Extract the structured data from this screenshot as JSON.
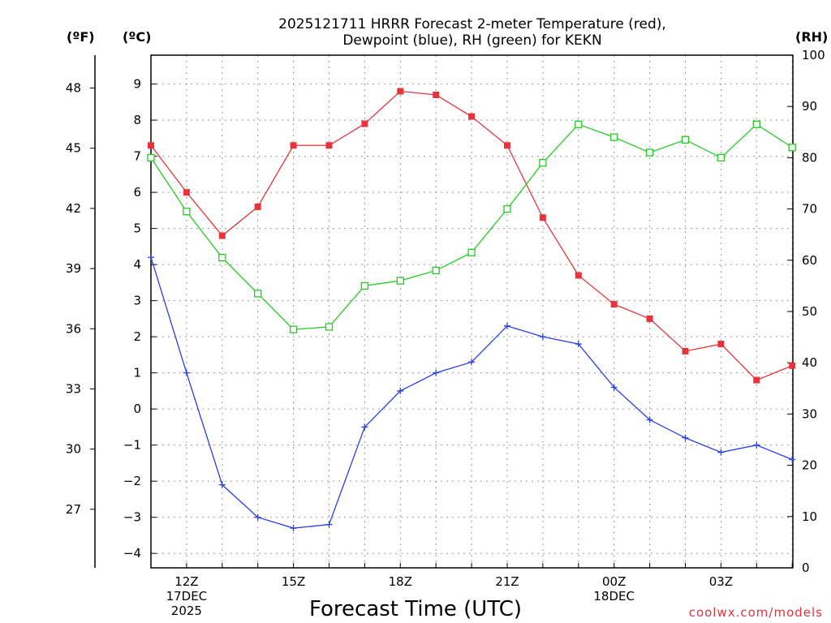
{
  "chart_data": {
    "type": "line",
    "title_line1": "2025121711 HRRR Forecast 2-meter Temperature (red),",
    "title_line2": "Dewpoint (blue), RH (green) for KEKN",
    "xlabel": "Forecast Time (UTC)",
    "credit": "coolwx.com/models",
    "unit_f": "(ºF)",
    "unit_c": "(ºC)",
    "unit_rh": "(RH)",
    "x_hours": [
      "11Z",
      "12Z",
      "13Z",
      "14Z",
      "15Z",
      "16Z",
      "17Z",
      "18Z",
      "19Z",
      "20Z",
      "21Z",
      "22Z",
      "23Z",
      "00Z",
      "01Z",
      "02Z",
      "03Z",
      "04Z",
      "05Z"
    ],
    "x_ticks": [
      {
        "index": 1,
        "lines": [
          "12Z",
          "17DEC",
          "2025"
        ]
      },
      {
        "index": 4,
        "lines": [
          "15Z"
        ]
      },
      {
        "index": 7,
        "lines": [
          "18Z"
        ]
      },
      {
        "index": 10,
        "lines": [
          "21Z"
        ]
      },
      {
        "index": 13,
        "lines": [
          "00Z",
          "18DEC"
        ]
      },
      {
        "index": 16,
        "lines": [
          "03Z"
        ]
      }
    ],
    "ylim_c": [
      -4.4,
      9.8
    ],
    "yticks_c": [
      -4,
      -3,
      -2,
      -1,
      0,
      1,
      2,
      3,
      4,
      5,
      6,
      7,
      8,
      9
    ],
    "ytick_labels_c": [
      "−4",
      "−3",
      "−2",
      "−1",
      "0",
      "1",
      "2",
      "3",
      "4",
      "5",
      "6",
      "7",
      "8",
      "9"
    ],
    "yticks_f": [
      27,
      30,
      33,
      36,
      39,
      42,
      45,
      48
    ],
    "ylim_rh": [
      0,
      100
    ],
    "yticks_rh": [
      0,
      10,
      20,
      30,
      40,
      50,
      60,
      70,
      80,
      90,
      100
    ],
    "series": [
      {
        "name": "Temperature",
        "unit": "C",
        "axis": "left",
        "color": "#e8333a",
        "marker": "filled-square",
        "values": [
          7.3,
          6.0,
          4.8,
          5.6,
          7.3,
          7.3,
          7.9,
          8.8,
          8.7,
          8.1,
          7.3,
          5.3,
          3.7,
          2.9,
          2.5,
          1.6,
          1.8,
          0.8,
          1.2
        ]
      },
      {
        "name": "Dewpoint",
        "unit": "C",
        "axis": "left",
        "color": "#2a3ee6",
        "marker": "plus",
        "values": [
          4.2,
          1.0,
          -2.1,
          -3.0,
          -3.3,
          -3.2,
          -0.5,
          0.5,
          1.0,
          1.3,
          2.3,
          2.0,
          1.8,
          0.6,
          -0.3,
          -0.8,
          -1.2,
          -1.0,
          -1.4
        ]
      },
      {
        "name": "RH",
        "unit": "%",
        "axis": "right",
        "color": "#22cc22",
        "marker": "open-square",
        "values": [
          80,
          69.5,
          60.5,
          53.5,
          46.5,
          47,
          55,
          56,
          58,
          61.5,
          70,
          79,
          86.5,
          84,
          81,
          83.5,
          80,
          86.5,
          82
        ]
      }
    ]
  }
}
